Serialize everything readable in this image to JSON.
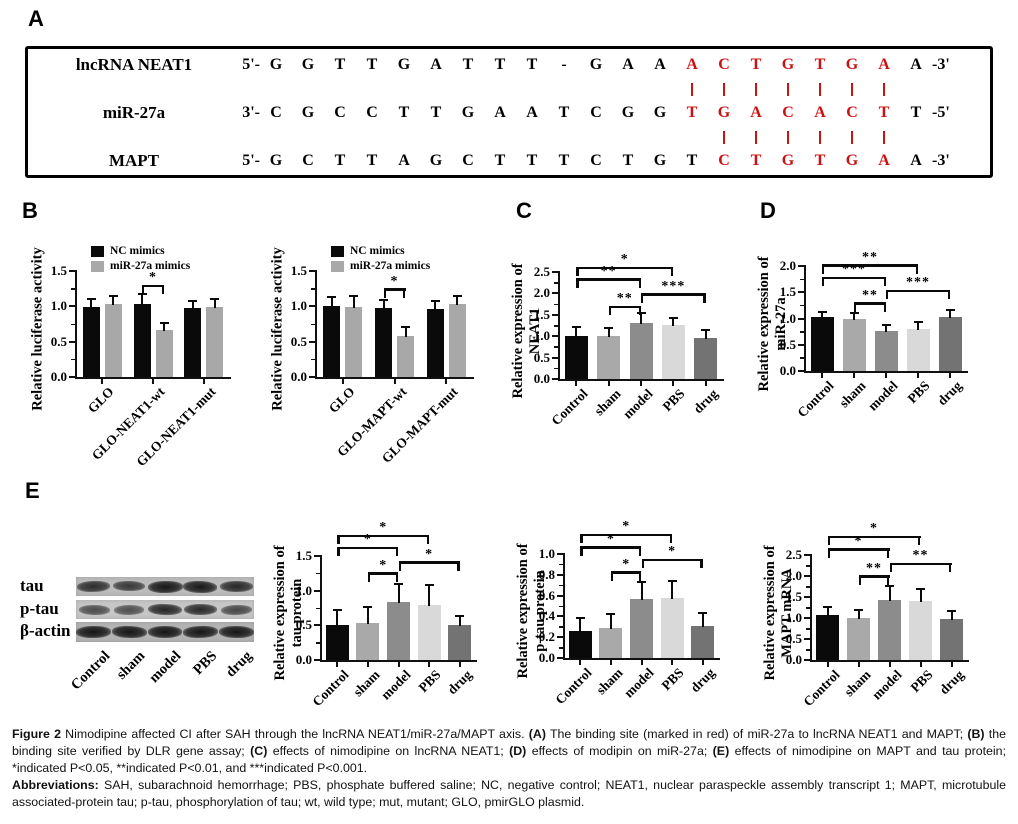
{
  "panel_labels": {
    "a": "A",
    "b": "B",
    "c": "C",
    "d": "D",
    "e": "E"
  },
  "panel_a": {
    "red_color": "#cc1111",
    "rows": [
      {
        "name": "lncRNA NEAT1",
        "prefix": "5'-",
        "letters": [
          "G",
          "G",
          "T",
          "T",
          "G",
          "A",
          "T",
          "T",
          "T",
          "-",
          "G",
          "A",
          "A",
          "A",
          "C",
          "T",
          "G",
          "T",
          "G",
          "A",
          "A"
        ],
        "red_start": 13,
        "red_end": 19,
        "suffix": "-3'"
      },
      {
        "name": "miR-27a",
        "prefix": "3'-",
        "letters": [
          "C",
          "G",
          "C",
          "C",
          "T",
          "T",
          "G",
          "A",
          "A",
          "T",
          "C",
          "G",
          "G",
          "T",
          "G",
          "A",
          "C",
          "A",
          "C",
          "T",
          "T"
        ],
        "red_start": 13,
        "red_end": 19,
        "suffix": "-5'"
      },
      {
        "name": "MAPT",
        "prefix": "5'-",
        "letters": [
          "G",
          "C",
          "T",
          "T",
          "A",
          "G",
          "C",
          "T",
          "T",
          "T",
          "C",
          "T",
          "G",
          "T",
          "C",
          "T",
          "G",
          "T",
          "G",
          "A",
          "A"
        ],
        "red_start": 14,
        "red_end": 19,
        "suffix": "-3'"
      }
    ],
    "bond_rows": [
      {
        "between": [
          0,
          1
        ],
        "cols": [
          13,
          14,
          15,
          16,
          17,
          18,
          19
        ]
      },
      {
        "between": [
          1,
          2
        ],
        "cols": [
          14,
          15,
          16,
          17,
          18,
          19
        ]
      }
    ]
  },
  "chart_data": [
    {
      "id": "b-neat1",
      "type": "bar",
      "ylabel_lines": [
        "Relative luciferase activity"
      ],
      "ylim": [
        0,
        1.5
      ],
      "yticks": [
        "0.0",
        "0.5",
        "1.0",
        "1.5"
      ],
      "grid": false,
      "legend_position": "top-left",
      "categories": [
        "GLO",
        "GLO-NEAT1-wt",
        "GLO-NEAT1-mut"
      ],
      "series": [
        {
          "name": "NC mimics",
          "color": "#0a0a0a",
          "values": [
            0.99,
            1.04,
            0.97
          ],
          "errors": [
            0.11,
            0.13,
            0.11
          ]
        },
        {
          "name": "miR-27a mimics",
          "color": "#a8a8a8",
          "values": [
            1.03,
            0.66,
            0.99
          ],
          "errors": [
            0.12,
            0.11,
            0.12
          ]
        }
      ],
      "sig": [
        {
          "a": [
            1,
            0
          ],
          "b": [
            1,
            1
          ],
          "y": 1.27,
          "label": "*"
        }
      ]
    },
    {
      "id": "b-mapt",
      "type": "bar",
      "ylabel_lines": [
        "Relative luciferase activity"
      ],
      "ylim": [
        0,
        1.5
      ],
      "yticks": [
        "0.0",
        "0.5",
        "1.0",
        "1.5"
      ],
      "grid": false,
      "legend_position": "top-left",
      "categories": [
        "GLO",
        "GLO-MAPT-wt",
        "GLO-MAPT-mut"
      ],
      "series": [
        {
          "name": "NC mimics",
          "color": "#0a0a0a",
          "values": [
            1.01,
            0.97,
            0.96
          ],
          "errors": [
            0.12,
            0.12,
            0.11
          ]
        },
        {
          "name": "miR-27a mimics",
          "color": "#a8a8a8",
          "values": [
            0.99,
            0.58,
            1.03
          ],
          "errors": [
            0.16,
            0.13,
            0.12
          ]
        }
      ],
      "sig": [
        {
          "a": [
            1,
            0
          ],
          "b": [
            1,
            1
          ],
          "y": 1.22,
          "label": "*"
        }
      ]
    },
    {
      "id": "c-neat1",
      "type": "bar",
      "ylabel_lines": [
        "Relative expression of",
        "NEAT1"
      ],
      "ylim": [
        0,
        2.5
      ],
      "yticks": [
        "0.0",
        "0.5",
        "1.0",
        "1.5",
        "2.0",
        "2.5"
      ],
      "grid": false,
      "categories": [
        "Control",
        "sham",
        "model",
        "PBS",
        "drug"
      ],
      "values": [
        1.01,
        1.0,
        1.3,
        1.26,
        0.95
      ],
      "errors": [
        0.21,
        0.2,
        0.25,
        0.16,
        0.19
      ],
      "bar_colors": [
        "#0a0a0a",
        "#a9a9a9",
        "#8c8c8c",
        "#d9d9d9",
        "#737373"
      ],
      "sig": [
        {
          "a": [
            0,
            0
          ],
          "b": [
            3,
            0
          ],
          "y": 2.56,
          "label": "*"
        },
        {
          "a": [
            0,
            0
          ],
          "b": [
            2,
            0
          ],
          "y": 2.3,
          "label": "**"
        },
        {
          "a": [
            2,
            0
          ],
          "b": [
            4,
            0
          ],
          "y": 1.95,
          "label": "***"
        },
        {
          "a": [
            1,
            0
          ],
          "b": [
            2,
            0
          ],
          "y": 1.66,
          "label": "**"
        }
      ]
    },
    {
      "id": "d-mir27a",
      "type": "bar",
      "ylabel_lines": [
        "Relative expression of",
        "miR-27a"
      ],
      "ylim": [
        0,
        2.0
      ],
      "yticks": [
        "0.0",
        "0.5",
        "1.0",
        "1.5",
        "2.0"
      ],
      "grid": false,
      "categories": [
        "Control",
        "sham",
        "model",
        "PBS",
        "drug"
      ],
      "values": [
        1.02,
        0.99,
        0.76,
        0.8,
        1.02
      ],
      "errors": [
        0.11,
        0.11,
        0.12,
        0.13,
        0.15
      ],
      "bar_colors": [
        "#0a0a0a",
        "#a9a9a9",
        "#8c8c8c",
        "#d9d9d9",
        "#737373"
      ],
      "sig": [
        {
          "a": [
            0,
            0
          ],
          "b": [
            3,
            0
          ],
          "y": 1.99,
          "label": "**"
        },
        {
          "a": [
            0,
            0
          ],
          "b": [
            2,
            0
          ],
          "y": 1.75,
          "label": "***"
        },
        {
          "a": [
            2,
            0
          ],
          "b": [
            4,
            0
          ],
          "y": 1.5,
          "label": "***"
        },
        {
          "a": [
            1,
            0
          ],
          "b": [
            2,
            0
          ],
          "y": 1.26,
          "label": "**"
        }
      ]
    },
    {
      "id": "e-tau",
      "type": "bar",
      "ylabel_lines": [
        "Relative expression of",
        "tau protein"
      ],
      "ylim": [
        0,
        1.5
      ],
      "yticks": [
        "0.0",
        "0.5",
        "1.0",
        "1.5"
      ],
      "grid": false,
      "categories": [
        "Control",
        "sham",
        "model",
        "PBS",
        "drug"
      ],
      "values": [
        0.5,
        0.53,
        0.83,
        0.8,
        0.51
      ],
      "errors": [
        0.22,
        0.24,
        0.27,
        0.28,
        0.12
      ],
      "bar_colors": [
        "#0a0a0a",
        "#a9a9a9",
        "#8c8c8c",
        "#d9d9d9",
        "#737373"
      ],
      "sig": [
        {
          "a": [
            0,
            0
          ],
          "b": [
            3,
            0
          ],
          "y": 1.77,
          "label": "*"
        },
        {
          "a": [
            0,
            0
          ],
          "b": [
            2,
            0
          ],
          "y": 1.6,
          "label": "*"
        },
        {
          "a": [
            2,
            0
          ],
          "b": [
            4,
            0
          ],
          "y": 1.39,
          "label": "*"
        },
        {
          "a": [
            1,
            0
          ],
          "b": [
            2,
            0
          ],
          "y": 1.23,
          "label": "*"
        }
      ]
    },
    {
      "id": "e-ptau",
      "type": "bar",
      "ylabel_lines": [
        "Relative expression of",
        "p-tau protein"
      ],
      "ylim": [
        0,
        1.0
      ],
      "yticks": [
        "0.0",
        "0.2",
        "0.4",
        "0.6",
        "0.8",
        "1.0"
      ],
      "grid": false,
      "categories": [
        "Control",
        "sham",
        "model",
        "PBS",
        "drug"
      ],
      "values": [
        0.26,
        0.29,
        0.57,
        0.58,
        0.31
      ],
      "errors": [
        0.12,
        0.13,
        0.16,
        0.16,
        0.12
      ],
      "bar_colors": [
        "#0a0a0a",
        "#a9a9a9",
        "#8c8c8c",
        "#d9d9d9",
        "#737373"
      ],
      "sig": [
        {
          "a": [
            0,
            0
          ],
          "b": [
            3,
            0
          ],
          "y": 1.17,
          "label": "*"
        },
        {
          "a": [
            0,
            0
          ],
          "b": [
            2,
            0
          ],
          "y": 1.05,
          "label": "*"
        },
        {
          "a": [
            2,
            0
          ],
          "b": [
            4,
            0
          ],
          "y": 0.93,
          "label": "*"
        },
        {
          "a": [
            1,
            0
          ],
          "b": [
            2,
            0
          ],
          "y": 0.81,
          "label": "*"
        }
      ]
    },
    {
      "id": "e-mapt",
      "type": "bar",
      "ylabel_lines": [
        "Relative expression of",
        "MAPT mRNA"
      ],
      "ylim": [
        0,
        2.5
      ],
      "yticks": [
        "0.0",
        "0.5",
        "1.0",
        "1.5",
        "2.0",
        "2.5"
      ],
      "grid": false,
      "categories": [
        "Control",
        "sham",
        "model",
        "PBS",
        "drug"
      ],
      "values": [
        1.07,
        1.0,
        1.42,
        1.4,
        0.98
      ],
      "errors": [
        0.19,
        0.19,
        0.35,
        0.3,
        0.19
      ],
      "bar_colors": [
        "#0a0a0a",
        "#a9a9a9",
        "#8c8c8c",
        "#d9d9d9",
        "#737373"
      ],
      "sig": [
        {
          "a": [
            0,
            0
          ],
          "b": [
            3,
            0
          ],
          "y": 2.9,
          "label": "*"
        },
        {
          "a": [
            0,
            0
          ],
          "b": [
            2,
            0
          ],
          "y": 2.6,
          "label": "*"
        },
        {
          "a": [
            2,
            0
          ],
          "b": [
            4,
            0
          ],
          "y": 2.26,
          "label": "**"
        },
        {
          "a": [
            1,
            0
          ],
          "b": [
            2,
            0
          ],
          "y": 1.96,
          "label": "**"
        }
      ]
    }
  ],
  "blot": {
    "row_labels": [
      "tau",
      "p-tau",
      "β-actin"
    ],
    "lane_labels": [
      "Control",
      "sham",
      "model",
      "PBS",
      "drug"
    ],
    "band_intensity": [
      [
        0.72,
        0.62,
        0.95,
        0.92,
        0.78
      ],
      [
        0.45,
        0.42,
        0.82,
        0.78,
        0.5
      ],
      [
        0.97,
        0.95,
        0.97,
        0.95,
        0.96
      ]
    ]
  },
  "caption": {
    "para1": [
      {
        "t": "Figure 2",
        "b": true
      },
      {
        "t": " Nimodipine affected CI after SAH through the lncRNA NEAT1/miR-27a/MAPT axis. ",
        "b": false
      },
      {
        "t": "(A)",
        "b": true
      },
      {
        "t": " The binding site (marked in red) of miR-27a to lncRNA NEAT1 and MAPT; ",
        "b": false
      },
      {
        "t": "(B)",
        "b": true
      },
      {
        "t": " the binding site verified by DLR gene assay; ",
        "b": false
      },
      {
        "t": "(C)",
        "b": true
      },
      {
        "t": " effects of nimodipine on lncRNA NEAT1; ",
        "b": false
      },
      {
        "t": "(D)",
        "b": true
      },
      {
        "t": " effects of modipin on miR-27a; ",
        "b": false
      },
      {
        "t": "(E)",
        "b": true
      },
      {
        "t": " effects of nimodipine on MAPT and tau protein; *indicated P<0.05, **indicated P<0.01, and ***indicated P<0.001.",
        "b": false
      }
    ],
    "para2": [
      {
        "t": "Abbreviations:",
        "b": true
      },
      {
        "t": " SAH, subarachnoid hemorrhage; PBS, phosphate buffered saline; NC, negative control; NEAT1, nuclear paraspeckle assembly transcript 1; MAPT, microtubule associated-protein tau; p-tau, phosphorylation of tau; wt, wild type; mut, mutant; GLO, pmirGLO plasmid.",
        "b": false
      }
    ]
  }
}
